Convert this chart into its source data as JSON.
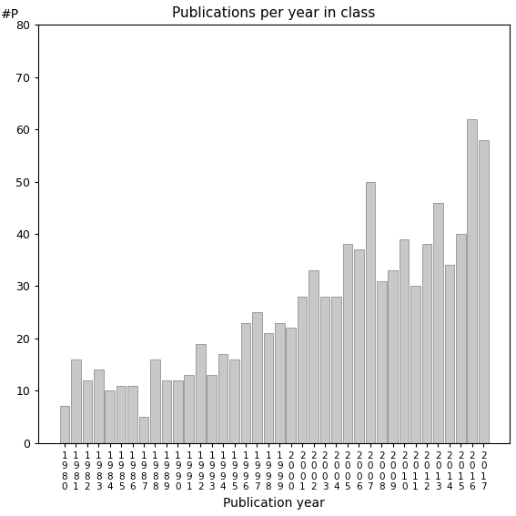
{
  "title": "Publications per year in class",
  "xlabel": "Publication year",
  "ylabel_label": "#P",
  "bar_color": "#c8c8c8",
  "bar_edgecolor": "#808080",
  "background_color": "#ffffff",
  "ylim": [
    0,
    80
  ],
  "yticks": [
    0,
    10,
    20,
    30,
    40,
    50,
    60,
    70,
    80
  ],
  "years": [
    1980,
    1981,
    1982,
    1983,
    1984,
    1985,
    1986,
    1987,
    1988,
    1989,
    1990,
    1991,
    1992,
    1993,
    1994,
    1995,
    1996,
    1997,
    1998,
    1999,
    2000,
    2001,
    2002,
    2003,
    2004,
    2005,
    2006,
    2007,
    2008,
    2009,
    2010,
    2011,
    2012,
    2013,
    2014,
    2015,
    2016,
    2017
  ],
  "values": [
    7,
    16,
    12,
    14,
    10,
    11,
    11,
    5,
    16,
    12,
    12,
    13,
    19,
    13,
    17,
    16,
    23,
    25,
    21,
    23,
    22,
    28,
    33,
    28,
    28,
    38,
    37,
    50,
    31,
    33,
    39,
    30,
    38,
    46,
    34,
    40,
    62,
    58
  ]
}
